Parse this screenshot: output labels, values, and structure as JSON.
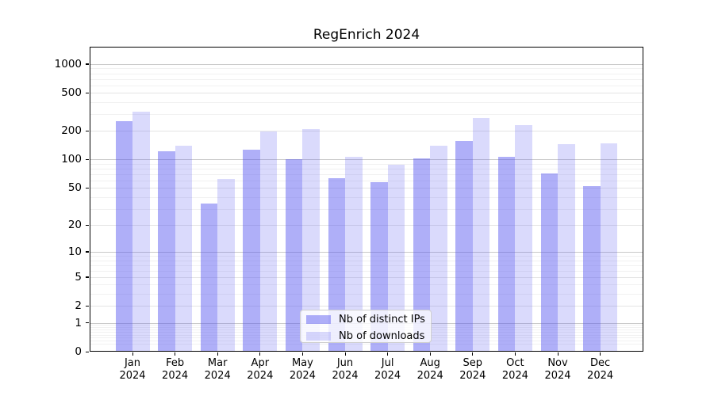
{
  "title": "RegEnrich 2024",
  "chart_data": {
    "type": "bar",
    "title": "RegEnrich 2024",
    "categories": [
      "Jan",
      "Feb",
      "Mar",
      "Apr",
      "May",
      "Jun",
      "Jul",
      "Aug",
      "Sep",
      "Oct",
      "Nov",
      "Dec"
    ],
    "category_year": "2024",
    "series": [
      {
        "name": "Nb of distinct IPs",
        "color": "rgba(85,85,240,0.47)",
        "values": [
          255,
          122,
          34,
          128,
          101,
          64,
          58,
          103,
          158,
          106,
          72,
          52
        ]
      },
      {
        "name": "Nb of downloads",
        "color": "rgba(85,85,240,0.22)",
        "values": [
          320,
          140,
          62,
          197,
          209,
          106,
          89,
          139,
          272,
          228,
          145,
          147
        ]
      }
    ],
    "xlabel": "",
    "ylabel": "",
    "y_scale": "log(value+1)",
    "y_ticks": [
      1000,
      500,
      200,
      100,
      50,
      20,
      10,
      5,
      2,
      1,
      0
    ],
    "y_minor_gridlines": [
      0.2,
      0.3,
      0.4,
      0.5,
      0.6,
      0.7,
      0.8,
      0.9,
      3,
      4,
      6,
      7,
      8,
      9,
      30,
      40,
      60,
      70,
      80,
      90,
      300,
      400,
      600,
      700,
      800,
      900
    ],
    "y_major_decades": [
      1,
      10,
      100,
      1000
    ],
    "ylim": [
      0,
      1534
    ],
    "grid": true,
    "legend_position": "lower center",
    "legend_labels": [
      "Nb of distinct IPs",
      "Nb of downloads"
    ]
  },
  "colors": {
    "bar_dark": "rgba(85,85,240,0.47)",
    "bar_light": "rgba(85,85,240,0.22)",
    "grid_major": "#c9c9c9",
    "grid_mid": "#e4e4e4",
    "grid_minor": "#f1f1f1",
    "spine": "#000000"
  }
}
